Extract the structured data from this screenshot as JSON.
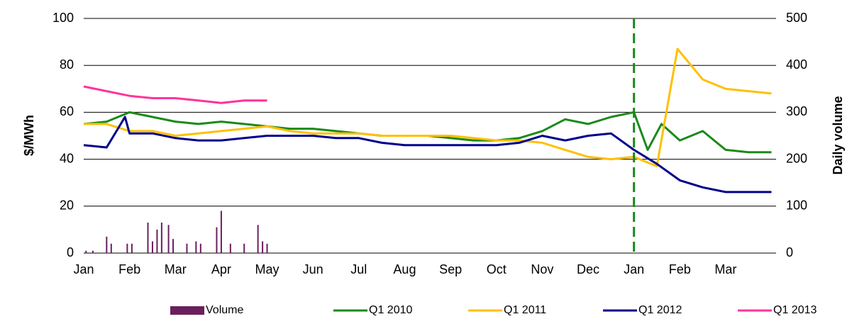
{
  "chart_data": {
    "type": "line",
    "ylabel": "$/MWh",
    "y2label": "Daily volume",
    "xlim": [
      0,
      15.1
    ],
    "ylim": [
      0,
      100
    ],
    "yticks": [
      0,
      20,
      40,
      60,
      80,
      100
    ],
    "y2lim": [
      0,
      500
    ],
    "y2ticks": [
      0,
      100,
      200,
      300,
      400,
      500
    ],
    "xticks": [
      {
        "value": 0,
        "label": "Jan"
      },
      {
        "value": 1,
        "label": "Feb"
      },
      {
        "value": 2,
        "label": "Mar"
      },
      {
        "value": 3,
        "label": "Apr"
      },
      {
        "value": 4,
        "label": "May"
      },
      {
        "value": 5,
        "label": "Jun"
      },
      {
        "value": 6,
        "label": "Jul"
      },
      {
        "value": 7,
        "label": "Aug"
      },
      {
        "value": 8,
        "label": "Sep"
      },
      {
        "value": 9,
        "label": "Oct"
      },
      {
        "value": 10,
        "label": "Nov"
      },
      {
        "value": 11,
        "label": "Dec"
      },
      {
        "value": 12,
        "label": "Jan"
      },
      {
        "value": 13,
        "label": "Feb"
      },
      {
        "value": 14,
        "label": "Mar"
      }
    ],
    "grid": true,
    "vline_x": 12,
    "vline_color": "#1a8a1a",
    "series": [
      {
        "name": "Volume",
        "color": "#6b1f5e",
        "kind": "bar",
        "axis": "y2",
        "x": [
          0.05,
          0.2,
          0.5,
          0.6,
          0.95,
          1.05,
          1.4,
          1.5,
          1.6,
          1.7,
          1.85,
          1.95,
          2.25,
          2.45,
          2.55,
          2.9,
          3.0,
          3.2,
          3.5,
          3.8,
          3.9,
          4.0
        ],
        "values": [
          5,
          5,
          35,
          20,
          20,
          20,
          65,
          25,
          50,
          65,
          60,
          30,
          20,
          25,
          20,
          55,
          90,
          20,
          20,
          60,
          25,
          20
        ]
      },
      {
        "name": "Q1 2010",
        "color": "#1a8a1a",
        "x": [
          0,
          0.5,
          1,
          1.5,
          2,
          2.5,
          3,
          3.5,
          4,
          4.5,
          5,
          5.5,
          6,
          6.5,
          7,
          7.5,
          8,
          8.5,
          9,
          9.5,
          10,
          10.5,
          11,
          11.5,
          12,
          12.3,
          12.6,
          13,
          13.5,
          14,
          14.5,
          15
        ],
        "values": [
          55,
          56,
          60,
          58,
          56,
          55,
          56,
          55,
          54,
          53,
          53,
          52,
          51,
          50,
          50,
          50,
          49,
          48,
          48,
          49,
          52,
          57,
          55,
          58,
          60,
          44,
          55,
          48,
          52,
          44,
          43,
          43
        ]
      },
      {
        "name": "Q1 2011",
        "color": "#ffc000",
        "x": [
          0,
          0.5,
          1,
          1.5,
          2,
          2.5,
          3,
          3.5,
          4,
          4.5,
          5,
          5.5,
          6,
          6.5,
          7,
          7.5,
          8,
          8.5,
          9,
          9.5,
          10,
          10.5,
          11,
          11.5,
          12,
          12.5,
          12.95,
          13.5,
          14,
          14.5,
          15
        ],
        "values": [
          55,
          55,
          52,
          52,
          50,
          51,
          52,
          53,
          54,
          52,
          51,
          51,
          51,
          50,
          50,
          50,
          50,
          49,
          48,
          48,
          47,
          44,
          41,
          40,
          41,
          37,
          87,
          74,
          70,
          69,
          68
        ]
      },
      {
        "name": "Q1 2012",
        "color": "#00008b",
        "x": [
          0,
          0.5,
          0.9,
          1,
          1.5,
          2,
          2.5,
          3,
          3.5,
          4,
          4.5,
          5,
          5.5,
          6,
          6.5,
          7,
          7.5,
          8,
          8.5,
          9,
          9.5,
          10,
          10.5,
          11,
          11.5,
          12,
          12.5,
          13,
          13.5,
          14,
          14.5,
          15
        ],
        "values": [
          46,
          45,
          58,
          51,
          51,
          49,
          48,
          48,
          49,
          50,
          50,
          50,
          49,
          49,
          47,
          46,
          46,
          46,
          46,
          46,
          47,
          50,
          48,
          50,
          51,
          44,
          38,
          31,
          28,
          26,
          26,
          26
        ]
      },
      {
        "name": "Q1 2013",
        "color": "#ff3399",
        "x": [
          0,
          0.5,
          1,
          1.5,
          2,
          2.5,
          3,
          3.5,
          4
        ],
        "values": [
          71,
          69,
          67,
          66,
          66,
          65,
          64,
          65,
          65
        ]
      }
    ]
  }
}
